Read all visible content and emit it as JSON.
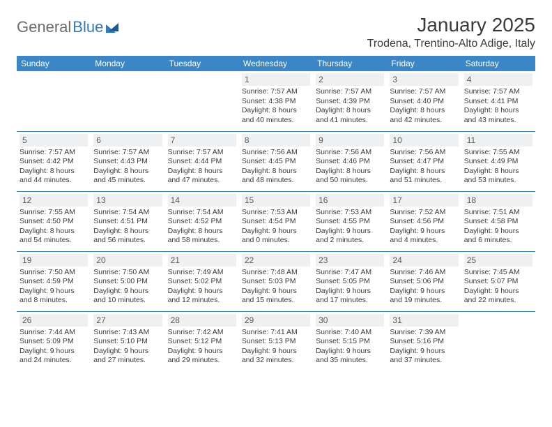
{
  "logo": {
    "general": "General",
    "blue": "Blue"
  },
  "title": "January 2025",
  "location": "Trodena, Trentino-Alto Adige, Italy",
  "colors": {
    "header_bg": "#3b86c6",
    "header_text": "#ffffff",
    "daynum_bg": "#eef0f2",
    "daynum_text": "#5a5a5a",
    "body_text": "#3a3a3a",
    "logo_gray": "#6b6b6b",
    "logo_blue": "#2f7ac0",
    "border": "#3b86c6"
  },
  "dayNames": [
    "Sunday",
    "Monday",
    "Tuesday",
    "Wednesday",
    "Thursday",
    "Friday",
    "Saturday"
  ],
  "weeks": [
    [
      {
        "day": "",
        "sunrise": "",
        "sunset": "",
        "daylight": ""
      },
      {
        "day": "",
        "sunrise": "",
        "sunset": "",
        "daylight": ""
      },
      {
        "day": "",
        "sunrise": "",
        "sunset": "",
        "daylight": ""
      },
      {
        "day": "1",
        "sunrise": "Sunrise: 7:57 AM",
        "sunset": "Sunset: 4:38 PM",
        "daylight": "Daylight: 8 hours and 40 minutes."
      },
      {
        "day": "2",
        "sunrise": "Sunrise: 7:57 AM",
        "sunset": "Sunset: 4:39 PM",
        "daylight": "Daylight: 8 hours and 41 minutes."
      },
      {
        "day": "3",
        "sunrise": "Sunrise: 7:57 AM",
        "sunset": "Sunset: 4:40 PM",
        "daylight": "Daylight: 8 hours and 42 minutes."
      },
      {
        "day": "4",
        "sunrise": "Sunrise: 7:57 AM",
        "sunset": "Sunset: 4:41 PM",
        "daylight": "Daylight: 8 hours and 43 minutes."
      }
    ],
    [
      {
        "day": "5",
        "sunrise": "Sunrise: 7:57 AM",
        "sunset": "Sunset: 4:42 PM",
        "daylight": "Daylight: 8 hours and 44 minutes."
      },
      {
        "day": "6",
        "sunrise": "Sunrise: 7:57 AM",
        "sunset": "Sunset: 4:43 PM",
        "daylight": "Daylight: 8 hours and 45 minutes."
      },
      {
        "day": "7",
        "sunrise": "Sunrise: 7:57 AM",
        "sunset": "Sunset: 4:44 PM",
        "daylight": "Daylight: 8 hours and 47 minutes."
      },
      {
        "day": "8",
        "sunrise": "Sunrise: 7:56 AM",
        "sunset": "Sunset: 4:45 PM",
        "daylight": "Daylight: 8 hours and 48 minutes."
      },
      {
        "day": "9",
        "sunrise": "Sunrise: 7:56 AM",
        "sunset": "Sunset: 4:46 PM",
        "daylight": "Daylight: 8 hours and 50 minutes."
      },
      {
        "day": "10",
        "sunrise": "Sunrise: 7:56 AM",
        "sunset": "Sunset: 4:47 PM",
        "daylight": "Daylight: 8 hours and 51 minutes."
      },
      {
        "day": "11",
        "sunrise": "Sunrise: 7:55 AM",
        "sunset": "Sunset: 4:49 PM",
        "daylight": "Daylight: 8 hours and 53 minutes."
      }
    ],
    [
      {
        "day": "12",
        "sunrise": "Sunrise: 7:55 AM",
        "sunset": "Sunset: 4:50 PM",
        "daylight": "Daylight: 8 hours and 54 minutes."
      },
      {
        "day": "13",
        "sunrise": "Sunrise: 7:54 AM",
        "sunset": "Sunset: 4:51 PM",
        "daylight": "Daylight: 8 hours and 56 minutes."
      },
      {
        "day": "14",
        "sunrise": "Sunrise: 7:54 AM",
        "sunset": "Sunset: 4:52 PM",
        "daylight": "Daylight: 8 hours and 58 minutes."
      },
      {
        "day": "15",
        "sunrise": "Sunrise: 7:53 AM",
        "sunset": "Sunset: 4:54 PM",
        "daylight": "Daylight: 9 hours and 0 minutes."
      },
      {
        "day": "16",
        "sunrise": "Sunrise: 7:53 AM",
        "sunset": "Sunset: 4:55 PM",
        "daylight": "Daylight: 9 hours and 2 minutes."
      },
      {
        "day": "17",
        "sunrise": "Sunrise: 7:52 AM",
        "sunset": "Sunset: 4:56 PM",
        "daylight": "Daylight: 9 hours and 4 minutes."
      },
      {
        "day": "18",
        "sunrise": "Sunrise: 7:51 AM",
        "sunset": "Sunset: 4:58 PM",
        "daylight": "Daylight: 9 hours and 6 minutes."
      }
    ],
    [
      {
        "day": "19",
        "sunrise": "Sunrise: 7:50 AM",
        "sunset": "Sunset: 4:59 PM",
        "daylight": "Daylight: 9 hours and 8 minutes."
      },
      {
        "day": "20",
        "sunrise": "Sunrise: 7:50 AM",
        "sunset": "Sunset: 5:00 PM",
        "daylight": "Daylight: 9 hours and 10 minutes."
      },
      {
        "day": "21",
        "sunrise": "Sunrise: 7:49 AM",
        "sunset": "Sunset: 5:02 PM",
        "daylight": "Daylight: 9 hours and 12 minutes."
      },
      {
        "day": "22",
        "sunrise": "Sunrise: 7:48 AM",
        "sunset": "Sunset: 5:03 PM",
        "daylight": "Daylight: 9 hours and 15 minutes."
      },
      {
        "day": "23",
        "sunrise": "Sunrise: 7:47 AM",
        "sunset": "Sunset: 5:05 PM",
        "daylight": "Daylight: 9 hours and 17 minutes."
      },
      {
        "day": "24",
        "sunrise": "Sunrise: 7:46 AM",
        "sunset": "Sunset: 5:06 PM",
        "daylight": "Daylight: 9 hours and 19 minutes."
      },
      {
        "day": "25",
        "sunrise": "Sunrise: 7:45 AM",
        "sunset": "Sunset: 5:07 PM",
        "daylight": "Daylight: 9 hours and 22 minutes."
      }
    ],
    [
      {
        "day": "26",
        "sunrise": "Sunrise: 7:44 AM",
        "sunset": "Sunset: 5:09 PM",
        "daylight": "Daylight: 9 hours and 24 minutes."
      },
      {
        "day": "27",
        "sunrise": "Sunrise: 7:43 AM",
        "sunset": "Sunset: 5:10 PM",
        "daylight": "Daylight: 9 hours and 27 minutes."
      },
      {
        "day": "28",
        "sunrise": "Sunrise: 7:42 AM",
        "sunset": "Sunset: 5:12 PM",
        "daylight": "Daylight: 9 hours and 29 minutes."
      },
      {
        "day": "29",
        "sunrise": "Sunrise: 7:41 AM",
        "sunset": "Sunset: 5:13 PM",
        "daylight": "Daylight: 9 hours and 32 minutes."
      },
      {
        "day": "30",
        "sunrise": "Sunrise: 7:40 AM",
        "sunset": "Sunset: 5:15 PM",
        "daylight": "Daylight: 9 hours and 35 minutes."
      },
      {
        "day": "31",
        "sunrise": "Sunrise: 7:39 AM",
        "sunset": "Sunset: 5:16 PM",
        "daylight": "Daylight: 9 hours and 37 minutes."
      },
      {
        "day": "",
        "sunrise": "",
        "sunset": "",
        "daylight": ""
      }
    ]
  ]
}
